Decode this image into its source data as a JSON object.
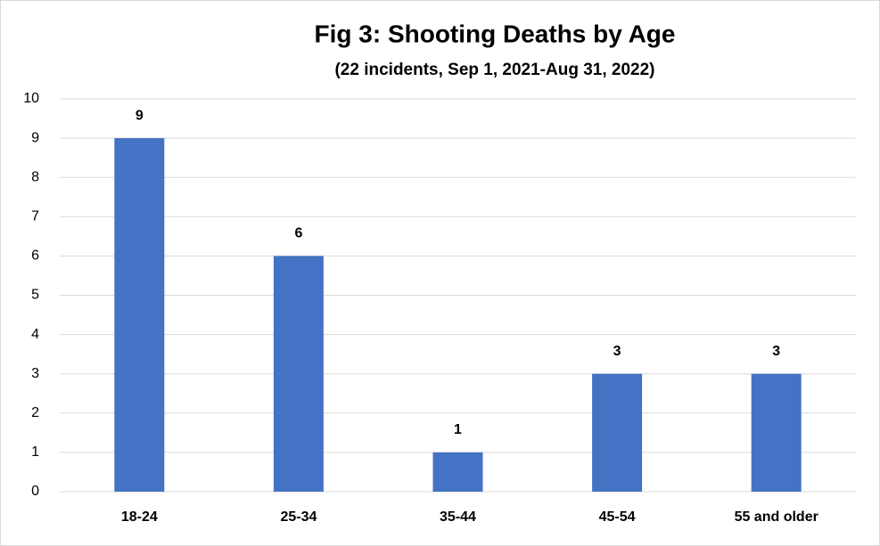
{
  "chart_data": {
    "type": "bar",
    "title": "Fig 3: Shooting Deaths by Age",
    "subtitle": "(22 incidents, Sep 1, 2021-Aug 31, 2022)",
    "categories": [
      "18-24",
      "25-34",
      "35-44",
      "45-54",
      "55 and older"
    ],
    "values": [
      9,
      6,
      1,
      3,
      3
    ],
    "color": "#4472c4",
    "ylim": [
      0,
      10
    ],
    "yticks": [
      0,
      1,
      2,
      3,
      4,
      5,
      6,
      7,
      8,
      9,
      10
    ],
    "grid": true,
    "data_labels": true
  }
}
